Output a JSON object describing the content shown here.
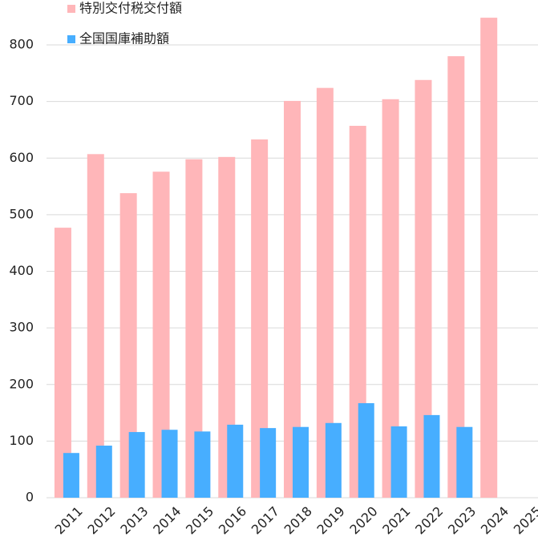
{
  "chart_data": {
    "type": "bar",
    "categories": [
      "2011",
      "2012",
      "2013",
      "2014",
      "2015",
      "2016",
      "2017",
      "2018",
      "2019",
      "2020",
      "2021",
      "2022",
      "2023",
      "2024",
      "2025"
    ],
    "series": [
      {
        "name": "特別交付税交付額",
        "color": "#ffb6b9",
        "values": [
          477,
          607,
          538,
          576,
          598,
          602,
          633,
          701,
          724,
          657,
          704,
          738,
          780,
          848,
          null
        ]
      },
      {
        "name": "全国国庫補助額",
        "color": "#47aeff",
        "values": [
          79,
          92,
          116,
          120,
          117,
          129,
          123,
          125,
          132,
          167,
          126,
          146,
          125,
          null,
          null
        ]
      }
    ],
    "ylim": [
      0,
      800
    ],
    "yticks": [
      0,
      100,
      200,
      300,
      400,
      500,
      600,
      700,
      800
    ],
    "grid": true
  }
}
